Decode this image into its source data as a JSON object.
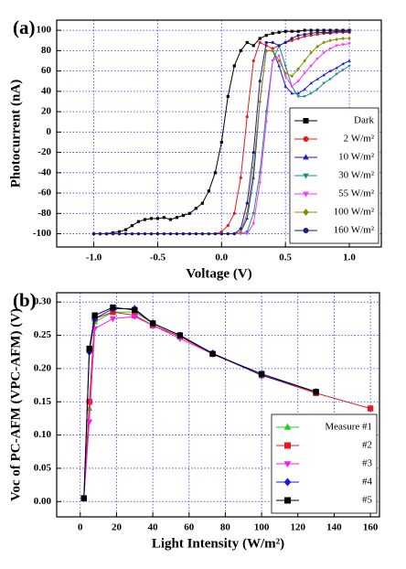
{
  "chart_data": [
    {
      "type": "line",
      "panel_label": "(a)",
      "x_label": "Voltage (V)",
      "y_label": "Photocurrent (nA)",
      "x": [
        -1.0,
        -0.95,
        -0.9,
        -0.85,
        -0.8,
        -0.75,
        -0.7,
        -0.65,
        -0.6,
        -0.55,
        -0.5,
        -0.45,
        -0.4,
        -0.35,
        -0.3,
        -0.25,
        -0.2,
        -0.15,
        -0.1,
        -0.05,
        0.0,
        0.05,
        0.1,
        0.15,
        0.2,
        0.25,
        0.3,
        0.35,
        0.4,
        0.45,
        0.5,
        0.55,
        0.6,
        0.65,
        0.7,
        0.75,
        0.8,
        0.85,
        0.9,
        0.95,
        1.0
      ],
      "series": [
        {
          "name": "Dark",
          "color": "#000000",
          "marker": "square",
          "values": [
            -100,
            -100,
            -100,
            -99,
            -98,
            -96,
            -92,
            -88,
            -86,
            -85,
            -85,
            -84,
            -86,
            -84,
            -82,
            -80,
            -75,
            -70,
            -58,
            -40,
            -10,
            35,
            65,
            80,
            88,
            85,
            92,
            95,
            97,
            98,
            99,
            99,
            99,
            100,
            100,
            100,
            100,
            100,
            100,
            100,
            100
          ]
        },
        {
          "name": "2 W/m²",
          "color": "#e8191c",
          "marker": "circle",
          "values": [
            -100,
            -100,
            -100,
            -100,
            -100,
            -100,
            -100,
            -100,
            -100,
            -100,
            -100,
            -100,
            -100,
            -100,
            -100,
            -100,
            -100,
            -100,
            -100,
            -100,
            -98,
            -92,
            -80,
            -45,
            15,
            70,
            88,
            85,
            82,
            85,
            88,
            90,
            92,
            94,
            95,
            96,
            97,
            97,
            98,
            98,
            98
          ]
        },
        {
          "name": "10 W/m²",
          "color": "#1a1adb",
          "marker": "triangle",
          "values": [
            -100,
            -100,
            -100,
            -100,
            -100,
            -100,
            -100,
            -100,
            -100,
            -100,
            -100,
            -100,
            -100,
            -100,
            -100,
            -100,
            -100,
            -100,
            -100,
            -100,
            -100,
            -100,
            -100,
            -98,
            -85,
            -45,
            30,
            80,
            80,
            65,
            45,
            38,
            38,
            42,
            48,
            52,
            56,
            60,
            63,
            67,
            70
          ]
        },
        {
          "name": "30 W/m²",
          "color": "#1a8c8c",
          "marker": "triangle-down",
          "values": [
            -100,
            -100,
            -100,
            -100,
            -100,
            -100,
            -100,
            -100,
            -100,
            -100,
            -100,
            -100,
            -100,
            -100,
            -100,
            -100,
            -100,
            -100,
            -100,
            -100,
            -100,
            -100,
            -100,
            -100,
            -98,
            -80,
            -40,
            20,
            70,
            85,
            65,
            45,
            35,
            35,
            38,
            42,
            48,
            52,
            57,
            61,
            65
          ]
        },
        {
          "name": "55 W/m²",
          "color": "#ff33ff",
          "marker": "triangle-down",
          "values": [
            -100,
            -100,
            -100,
            -100,
            -100,
            -100,
            -100,
            -100,
            -100,
            -100,
            -100,
            -100,
            -100,
            -100,
            -100,
            -100,
            -100,
            -100,
            -100,
            -100,
            -100,
            -100,
            -100,
            -100,
            -100,
            -90,
            -50,
            10,
            70,
            75,
            55,
            45,
            50,
            58,
            65,
            72,
            78,
            82,
            85,
            86,
            87
          ]
        },
        {
          "name": "100 W/m²",
          "color": "#8c8c00",
          "marker": "diamond",
          "values": [
            -100,
            -100,
            -100,
            -100,
            -100,
            -100,
            -100,
            -100,
            -100,
            -100,
            -100,
            -100,
            -100,
            -100,
            -100,
            -100,
            -100,
            -100,
            -100,
            -100,
            -100,
            -100,
            -100,
            -98,
            -80,
            -35,
            30,
            80,
            80,
            70,
            58,
            55,
            62,
            70,
            78,
            84,
            88,
            90,
            91,
            92,
            92
          ]
        },
        {
          "name": "160 W/m²",
          "color": "#1a1a8c",
          "marker": "circle",
          "values": [
            -100,
            -100,
            -100,
            -100,
            -100,
            -100,
            -100,
            -100,
            -100,
            -100,
            -100,
            -100,
            -100,
            -100,
            -100,
            -100,
            -100,
            -100,
            -100,
            -100,
            -100,
            -100,
            -100,
            -95,
            -70,
            -20,
            50,
            88,
            88,
            85,
            88,
            92,
            95,
            96,
            97,
            98,
            98,
            98,
            99,
            99,
            99
          ]
        }
      ],
      "xlim": [
        -1.29,
        1.25
      ],
      "ylim": [
        -113,
        110
      ],
      "xticks": [
        {
          "value": -1.0,
          "label": "-1.0"
        },
        {
          "value": -0.5,
          "label": "-0.5"
        },
        {
          "value": 0.0,
          "label": "0.0"
        },
        {
          "value": 0.5,
          "label": "0.5"
        },
        {
          "value": 1.0,
          "label": "1.0"
        }
      ],
      "yticks": [
        -100,
        -80,
        -60,
        -40,
        -20,
        0,
        20,
        40,
        60,
        80,
        100
      ],
      "grid": true,
      "legend": "lower right"
    },
    {
      "type": "line",
      "panel_label": "(b)",
      "x_label": "Light Intensity (W/m²)",
      "y_label": "Voc of PC-AFM (VPC-AFM) (V)",
      "x": [
        2,
        5,
        8,
        18,
        30,
        40,
        55,
        73,
        100,
        130,
        160
      ],
      "series": [
        {
          "name": "Measure #1",
          "color": "#22cc22",
          "marker": "triangle",
          "values": [
            0.005,
            0.14,
            0.27,
            0.285,
            0.285,
            0.268,
            0.25,
            0.223,
            0.19,
            0.165,
            null
          ]
        },
        {
          "name": "#2",
          "color": "#e8191c",
          "marker": "square",
          "values": [
            0.005,
            0.15,
            0.275,
            0.285,
            0.28,
            0.265,
            0.248,
            0.222,
            0.19,
            0.163,
            0.14
          ]
        },
        {
          "name": "#3",
          "color": "#ee22ee",
          "marker": "triangle-down",
          "values": [
            0.005,
            0.12,
            0.26,
            0.275,
            0.278,
            0.265,
            0.245,
            0.222,
            0.19,
            0.165,
            null
          ]
        },
        {
          "name": "#4",
          "color": "#1a1adb",
          "marker": "diamond",
          "values": [
            0.005,
            0.225,
            0.275,
            0.29,
            0.29,
            0.268,
            0.25,
            0.223,
            0.19,
            0.165,
            null
          ]
        },
        {
          "name": "#5",
          "color": "#000000",
          "marker": "square",
          "values": [
            0.005,
            0.23,
            0.28,
            0.292,
            0.288,
            0.268,
            0.25,
            0.222,
            0.192,
            0.165,
            null
          ]
        }
      ],
      "xlim": [
        -13,
        165
      ],
      "ylim": [
        -0.023,
        0.314
      ],
      "xticks": [
        0,
        20,
        40,
        60,
        80,
        100,
        120,
        140,
        160
      ],
      "yticks": [
        {
          "value": 0.0,
          "label": "0.00"
        },
        {
          "value": 0.05,
          "label": "0.05"
        },
        {
          "value": 0.1,
          "label": "0.10"
        },
        {
          "value": 0.15,
          "label": "0.15"
        },
        {
          "value": 0.2,
          "label": "0.20"
        },
        {
          "value": 0.25,
          "label": "0.25"
        },
        {
          "value": 0.3,
          "label": "0.30"
        }
      ],
      "grid": true,
      "legend": "lower right"
    }
  ]
}
